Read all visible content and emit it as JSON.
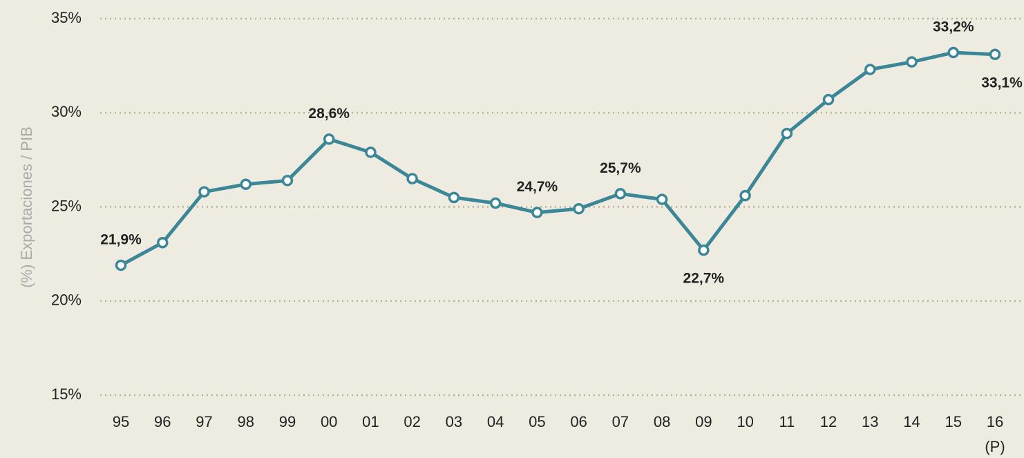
{
  "chart_data": {
    "type": "line",
    "y_label": "(%) Exportaciones / PIB",
    "categories": [
      "95",
      "96",
      "97",
      "98",
      "99",
      "00",
      "01",
      "02",
      "03",
      "04",
      "05",
      "06",
      "07",
      "08",
      "09",
      "10",
      "11",
      "12",
      "13",
      "14",
      "15",
      "16"
    ],
    "annotations": [
      "(P)"
    ],
    "series": [
      {
        "name": "Exportaciones / PIB",
        "color": "#3b8697",
        "values": [
          21.9,
          23.1,
          25.8,
          26.2,
          26.4,
          28.6,
          27.9,
          26.5,
          25.5,
          25.2,
          24.7,
          24.9,
          25.7,
          25.4,
          22.7,
          25.6,
          28.9,
          30.7,
          32.3,
          32.7,
          33.2,
          33.1
        ],
        "value_labels": [
          "21,9%",
          null,
          null,
          null,
          null,
          "28,6%",
          null,
          null,
          null,
          null,
          "24,7%",
          null,
          "25,7%",
          null,
          "22,7%",
          null,
          null,
          null,
          null,
          null,
          "33,2%",
          "33,1%"
        ]
      }
    ],
    "ylim": [
      15,
      35
    ],
    "yticks": [
      {
        "value": 15,
        "label": "15%"
      },
      {
        "value": 20,
        "label": "20%"
      },
      {
        "value": 25,
        "label": "25%"
      },
      {
        "value": 30,
        "label": "30%"
      },
      {
        "value": 35,
        "label": "35%"
      }
    ],
    "grid": true
  }
}
